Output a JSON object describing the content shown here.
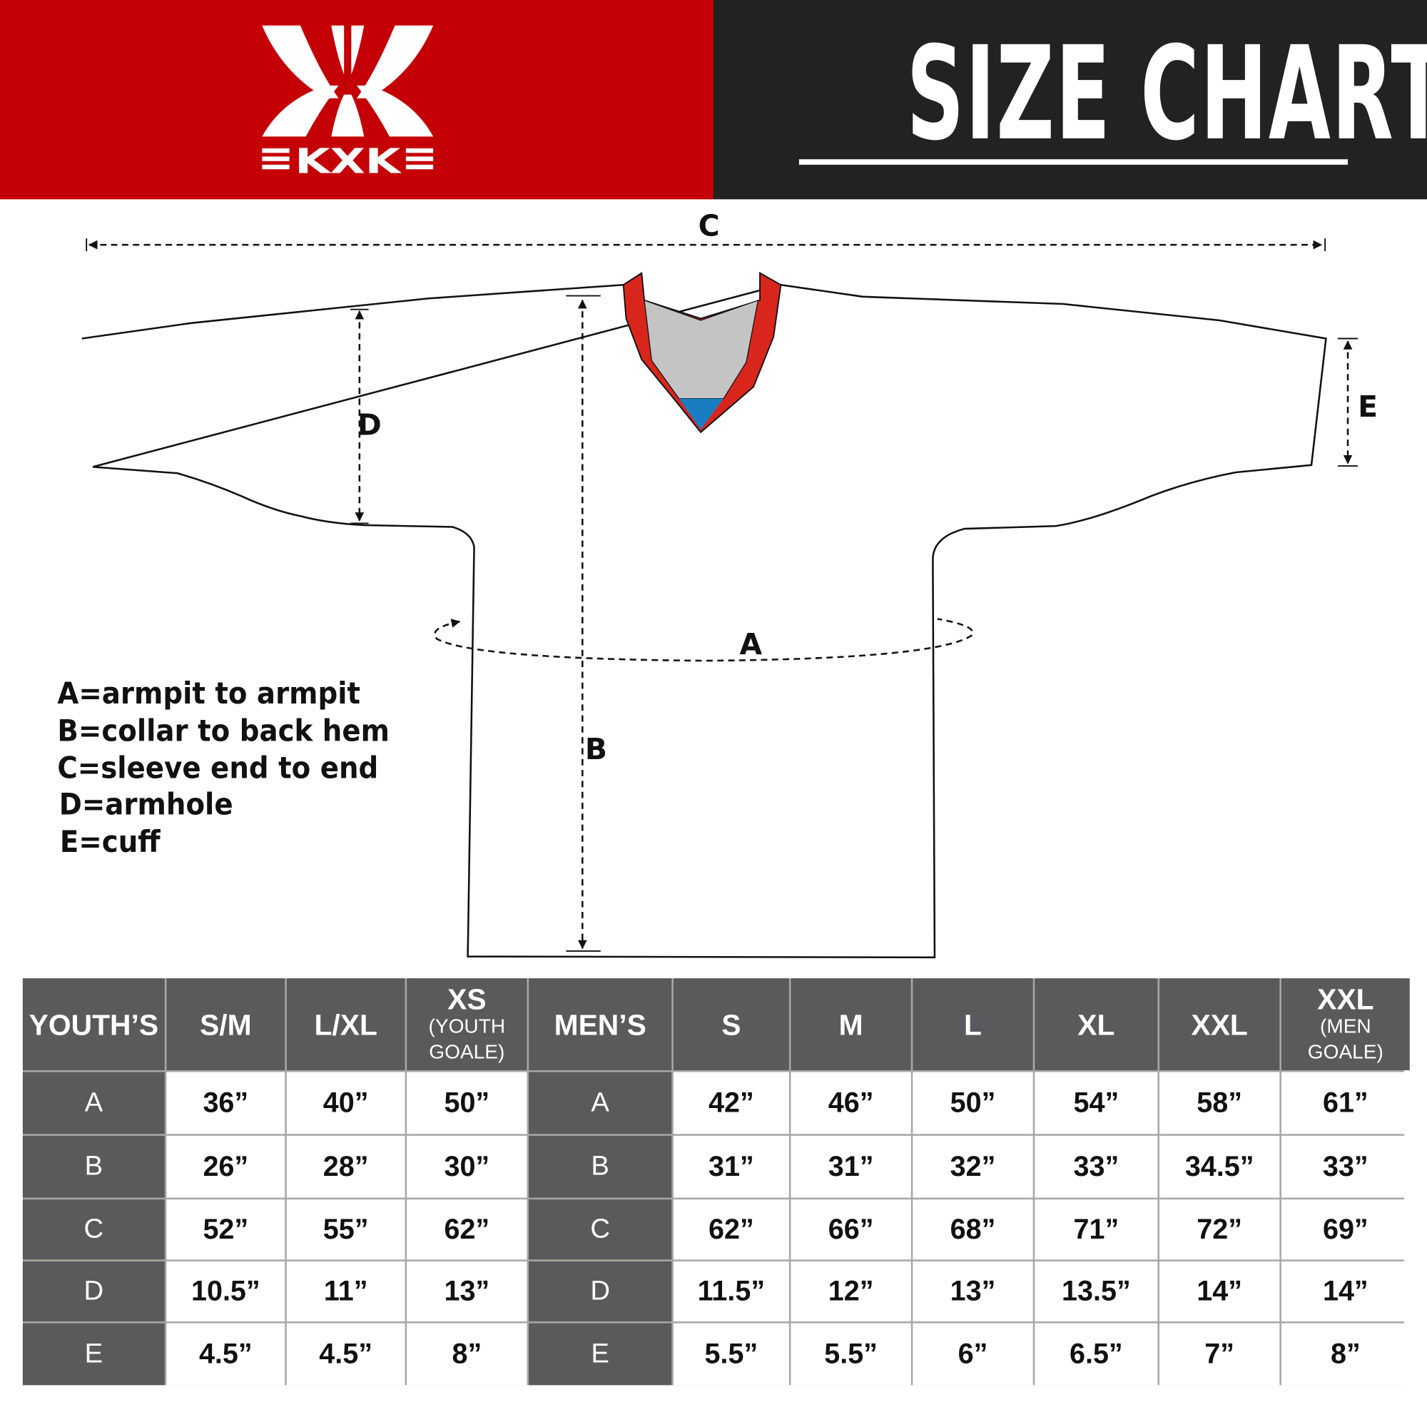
{
  "brand": {
    "logo_text": "KXK",
    "colors": {
      "red": "#c40006",
      "dark": "#222222",
      "table_header": "#5a5a5c",
      "collar_red": "#d9261c",
      "collar_blue": "#1a7dc4",
      "collar_gray": "#c4c4c4"
    }
  },
  "header": {
    "title": "SIZE CHART"
  },
  "diagram": {
    "labels": {
      "a": "A",
      "b": "B",
      "c": "C",
      "d": "D",
      "e": "E"
    }
  },
  "legend": [
    "A=armpit to armpit",
    "B=collar to back hem",
    "C=sleeve end to end",
    "D=armhole",
    "E=cuff"
  ],
  "table": {
    "columns": [
      {
        "main": "YOUTH’S",
        "sub": ""
      },
      {
        "main": "S/M",
        "sub": ""
      },
      {
        "main": "L/XL",
        "sub": ""
      },
      {
        "main": "XS",
        "sub": "(YOUTH GOALE)"
      },
      {
        "main": "MEN’S",
        "sub": ""
      },
      {
        "main": "S",
        "sub": ""
      },
      {
        "main": "M",
        "sub": ""
      },
      {
        "main": "L",
        "sub": ""
      },
      {
        "main": "XL",
        "sub": ""
      },
      {
        "main": "XXL",
        "sub": ""
      },
      {
        "main": "XXL",
        "sub": "(MEN GOALE)"
      }
    ],
    "rows": [
      {
        "label": "A",
        "youth": [
          "36”",
          "40”",
          "50”"
        ],
        "men": [
          "42”",
          "46”",
          "50”",
          "54”",
          "58”",
          "61”"
        ]
      },
      {
        "label": "B",
        "youth": [
          "26”",
          "28”",
          "30”"
        ],
        "men": [
          "31”",
          "31”",
          "32”",
          "33”",
          "34.5”",
          "33”"
        ]
      },
      {
        "label": "C",
        "youth": [
          "52”",
          "55”",
          "62”"
        ],
        "men": [
          "62”",
          "66”",
          "68”",
          "71”",
          "72”",
          "69”"
        ]
      },
      {
        "label": "D",
        "youth": [
          "10.5”",
          "11”",
          "13”"
        ],
        "men": [
          "11.5”",
          "12”",
          "13”",
          "13.5”",
          "14”",
          "14”"
        ]
      },
      {
        "label": "E",
        "youth": [
          "4.5”",
          "4.5”",
          "8”"
        ],
        "men": [
          "5.5”",
          "5.5”",
          "6”",
          "6.5”",
          "7”",
          "8”"
        ]
      }
    ]
  }
}
